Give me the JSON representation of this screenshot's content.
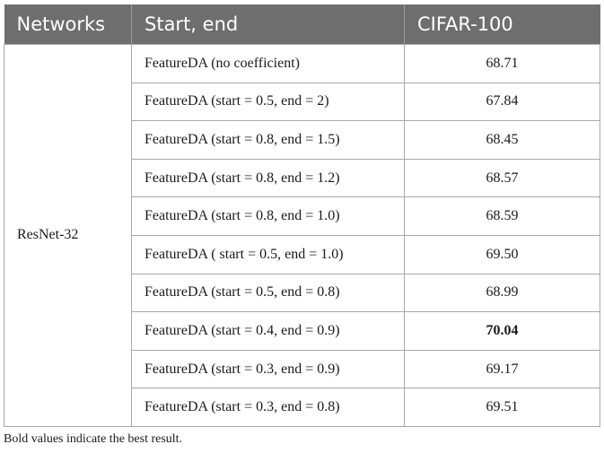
{
  "table": {
    "headers": [
      "Networks",
      "Start, end",
      "CIFAR-100"
    ],
    "network": "ResNet-32",
    "rows": [
      {
        "setting": "FeatureDA (no coefficient)",
        "value": "68.71",
        "best": false
      },
      {
        "setting": "FeatureDA (start = 0.5, end = 2)",
        "value": "67.84",
        "best": false
      },
      {
        "setting": "FeatureDA (start = 0.8, end = 1.5)",
        "value": "68.45",
        "best": false
      },
      {
        "setting": "FeatureDA (start = 0.8, end = 1.2)",
        "value": "68.57",
        "best": false
      },
      {
        "setting": "FeatureDA (start = 0.8, end = 1.0)",
        "value": "68.59",
        "best": false
      },
      {
        "setting": "FeatureDA ( start = 0.5, end = 1.0)",
        "value": "69.50",
        "best": false
      },
      {
        "setting": "FeatureDA (start = 0.5, end = 0.8)",
        "value": "68.99",
        "best": false
      },
      {
        "setting": "FeatureDA (start = 0.4, end = 0.9)",
        "value": "70.04",
        "best": true
      },
      {
        "setting": "FeatureDA (start = 0.3, end = 0.9)",
        "value": "69.17",
        "best": false
      },
      {
        "setting": "FeatureDA (start = 0.3, end = 0.8)",
        "value": "69.51",
        "best": false
      }
    ]
  },
  "footnote": "Bold values indicate the best result."
}
